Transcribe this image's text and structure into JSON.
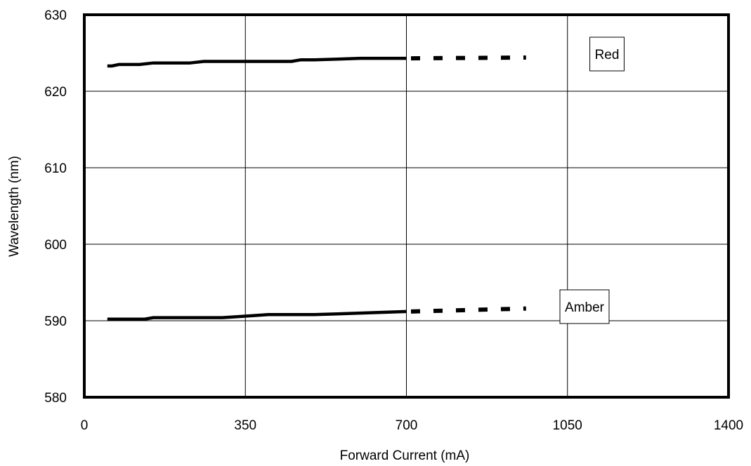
{
  "chart_data": {
    "type": "line",
    "xlabel": "Forward Current (mA)",
    "ylabel": "Wavelength (nm)",
    "xlim": [
      0,
      1400
    ],
    "ylim": [
      580,
      630
    ],
    "x_ticks": [
      "0",
      "350",
      "700",
      "1050",
      "1400"
    ],
    "y_ticks": [
      "580",
      "590",
      "600",
      "610",
      "620",
      "630"
    ],
    "grid": true,
    "series": [
      {
        "name": "Red",
        "solid": {
          "x": [
            50,
            60,
            75,
            90,
            120,
            150,
            200,
            230,
            260,
            300,
            350,
            400,
            450,
            470,
            500,
            550,
            600,
            650,
            700
          ],
          "y": [
            623.3,
            623.3,
            623.5,
            623.5,
            623.5,
            623.7,
            623.7,
            623.7,
            623.9,
            623.9,
            623.9,
            623.9,
            623.9,
            624.1,
            624.1,
            624.2,
            624.3,
            624.3,
            624.3
          ]
        },
        "dashed": {
          "x": [
            710,
            960
          ],
          "y": [
            624.3,
            624.4
          ]
        }
      },
      {
        "name": "Amber",
        "solid": {
          "x": [
            50,
            80,
            130,
            150,
            200,
            250,
            300,
            350,
            400,
            450,
            500,
            550,
            600,
            650,
            700
          ],
          "y": [
            590.2,
            590.2,
            590.2,
            590.4,
            590.4,
            590.4,
            590.4,
            590.6,
            590.8,
            590.8,
            590.8,
            590.9,
            591.0,
            591.1,
            591.2
          ]
        },
        "dashed": {
          "x": [
            710,
            960
          ],
          "y": [
            591.2,
            591.6
          ]
        }
      }
    ]
  }
}
